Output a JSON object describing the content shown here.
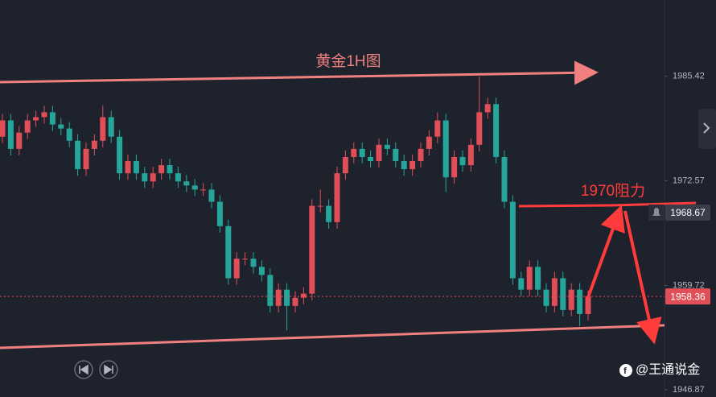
{
  "chart_data": {
    "type": "candlestick",
    "title": "黄金1H图",
    "annotation": "1970阻力",
    "watermark": "@王通说金",
    "up_color": "#e04e58",
    "down_color": "#26a69a",
    "ylim": [
      1946.0,
      1994.8
    ],
    "yticks": [
      1985.42,
      1972.57,
      1959.72,
      1946.87
    ],
    "price_tags": [
      {
        "value": 1968.67,
        "color": "#3a3e4a"
      },
      {
        "value": 1958.36,
        "color": "#e04e58"
      }
    ],
    "open": [
      1978.0,
      1980.0,
      1976.5,
      1978.5,
      1980.0,
      1980.4,
      1981.0,
      1979.5,
      1979.0,
      1977.5,
      1974.0,
      1976.5,
      1977.5,
      1980.4,
      1978.0,
      1973.5,
      1975.0,
      1973.5,
      1972.5,
      1973.5,
      1974.5,
      1973.5,
      1972.5,
      1972.0,
      1971.5,
      1971.5,
      1970.0,
      1967.0,
      1960.6,
      1963.0,
      1963.0,
      1962.0,
      1961.0,
      1957.2,
      1959.2,
      1957.2,
      1958.2,
      1958.7,
      1969.5,
      1969.5,
      1967.5,
      1973.5,
      1975.5,
      1976.5,
      1975.5,
      1975.0,
      1977.0,
      1976.5,
      1975.0,
      1974.0,
      1975.0,
      1976.5,
      1978.0,
      1980.0,
      1973.0,
      1975.5,
      1974.5,
      1977.0,
      1981.0,
      1982.0,
      1975.5,
      1970.0,
      1960.6,
      1959.2,
      1962.0,
      1959.2,
      1957.2,
      1960.6,
      1956.7,
      1959.2,
      1956.2
    ],
    "high": [
      1980.8,
      1980.8,
      1979.3,
      1980.8,
      1981.2,
      1981.8,
      1981.8,
      1980.3,
      1979.8,
      1978.3,
      1977.3,
      1978.3,
      1981.8,
      1981.2,
      1978.8,
      1975.8,
      1975.8,
      1974.3,
      1974.3,
      1975.3,
      1975.3,
      1974.3,
      1973.3,
      1972.8,
      1972.3,
      1972.3,
      1970.8,
      1967.8,
      1963.8,
      1963.8,
      1963.8,
      1962.8,
      1961.8,
      1960.0,
      1960.0,
      1959.0,
      1959.5,
      1970.3,
      1971.5,
      1970.3,
      1974.3,
      1976.3,
      1977.3,
      1977.3,
      1976.3,
      1977.8,
      1977.8,
      1977.3,
      1975.8,
      1975.8,
      1977.3,
      1978.8,
      1981.0,
      1980.8,
      1976.3,
      1976.3,
      1977.8,
      1985.4,
      1982.8,
      1982.8,
      1976.3,
      1970.8,
      1961.4,
      1962.8,
      1962.8,
      1960.0,
      1961.4,
      1961.4,
      1960.0,
      1960.0,
      1959.1
    ],
    "low": [
      1977.2,
      1975.7,
      1975.7,
      1977.7,
      1979.2,
      1979.6,
      1978.7,
      1978.2,
      1976.7,
      1973.2,
      1973.2,
      1975.7,
      1976.7,
      1977.2,
      1972.7,
      1972.7,
      1972.7,
      1971.7,
      1971.7,
      1972.7,
      1972.7,
      1971.7,
      1971.2,
      1970.7,
      1970.7,
      1969.2,
      1966.2,
      1959.8,
      1959.8,
      1962.2,
      1961.2,
      1960.2,
      1956.4,
      1956.4,
      1954.2,
      1956.4,
      1957.4,
      1957.9,
      1968.7,
      1966.7,
      1966.7,
      1972.7,
      1974.7,
      1974.7,
      1974.2,
      1974.2,
      1975.7,
      1974.2,
      1973.2,
      1973.2,
      1974.2,
      1975.7,
      1977.2,
      1971.2,
      1972.2,
      1973.7,
      1973.7,
      1976.2,
      1980.2,
      1974.7,
      1969.2,
      1959.8,
      1958.4,
      1958.4,
      1958.4,
      1956.4,
      1956.4,
      1955.9,
      1955.9,
      1954.7,
      1955.4
    ],
    "close": [
      1980.0,
      1976.5,
      1978.5,
      1980.0,
      1980.4,
      1981.0,
      1979.5,
      1979.0,
      1977.5,
      1974.0,
      1976.5,
      1977.5,
      1980.4,
      1978.0,
      1973.5,
      1975.0,
      1973.5,
      1972.5,
      1973.5,
      1974.5,
      1973.5,
      1972.5,
      1972.0,
      1971.5,
      1971.5,
      1970.0,
      1967.0,
      1960.6,
      1963.0,
      1963.0,
      1962.0,
      1961.0,
      1957.2,
      1959.2,
      1957.2,
      1958.2,
      1958.7,
      1969.5,
      1969.5,
      1967.5,
      1973.5,
      1975.5,
      1976.5,
      1975.5,
      1975.0,
      1977.0,
      1976.5,
      1975.0,
      1974.0,
      1975.0,
      1976.5,
      1978.0,
      1980.0,
      1973.0,
      1975.5,
      1974.5,
      1977.0,
      1981.0,
      1982.0,
      1975.5,
      1970.0,
      1960.6,
      1959.2,
      1962.0,
      1959.2,
      1957.2,
      1960.6,
      1956.7,
      1959.2,
      1956.2,
      1958.36
    ]
  }
}
